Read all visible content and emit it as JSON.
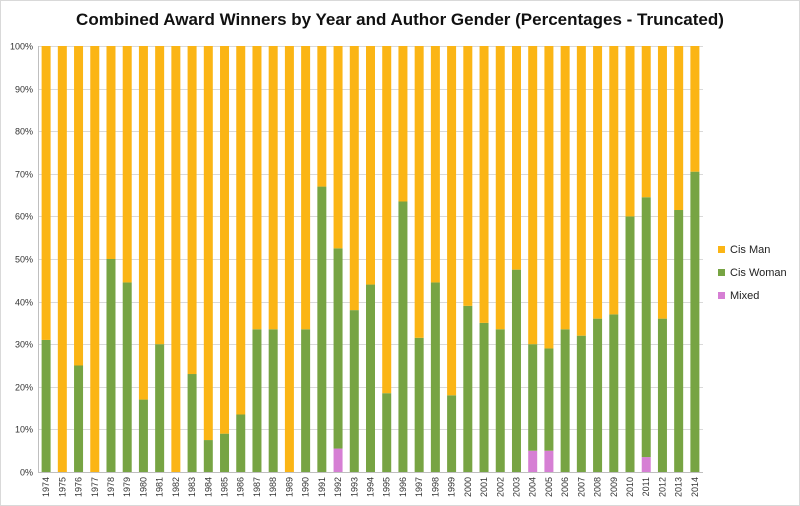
{
  "chart_data": {
    "type": "bar",
    "stacked": true,
    "title": "Combined Award Winners by Year and Author Gender (Percentages - Truncated)",
    "xlabel": "",
    "ylabel": "",
    "ylim": [
      0,
      100
    ],
    "yticks": [
      "0%",
      "10%",
      "20%",
      "30%",
      "40%",
      "50%",
      "60%",
      "70%",
      "80%",
      "90%",
      "100%"
    ],
    "grid": true,
    "legend_position": "right",
    "categories": [
      "1974",
      "1975",
      "1976",
      "1977",
      "1978",
      "1979",
      "1980",
      "1981",
      "1982",
      "1983",
      "1984",
      "1985",
      "1986",
      "1987",
      "1988",
      "1989",
      "1990",
      "1991",
      "1992",
      "1993",
      "1994",
      "1995",
      "1996",
      "1997",
      "1998",
      "1999",
      "2000",
      "2001",
      "2002",
      "2003",
      "2004",
      "2005",
      "2006",
      "2007",
      "2008",
      "2009",
      "2010",
      "2011",
      "2012",
      "2013",
      "2014"
    ],
    "series": [
      {
        "name": "Mixed",
        "color": "#d67fd4",
        "values": [
          0,
          0,
          0,
          0,
          0,
          0,
          0,
          0,
          0,
          0,
          0,
          0,
          0,
          0,
          0,
          0,
          0,
          0,
          5.5,
          0,
          0,
          0,
          0,
          0,
          0,
          0,
          0,
          0,
          0,
          0,
          5,
          5,
          0,
          0,
          0,
          0,
          0,
          3.5,
          0,
          0,
          0
        ]
      },
      {
        "name": "Cis Woman",
        "color": "#77a443",
        "values": [
          31,
          0,
          25,
          0,
          50,
          44.5,
          17,
          30,
          0,
          23,
          7.5,
          9,
          13.5,
          33.5,
          33.5,
          0,
          33.5,
          67,
          47,
          38,
          44,
          18.5,
          63.5,
          31.5,
          44.5,
          18,
          39,
          35,
          33.5,
          47.5,
          25,
          24,
          33.5,
          32,
          36,
          37,
          60,
          61,
          36,
          61.5,
          70.5
        ]
      },
      {
        "name": "Cis Man",
        "color": "#fbb515",
        "values": [
          69,
          100,
          75,
          100,
          50,
          55.5,
          83,
          70,
          100,
          77,
          92.5,
          91,
          86.5,
          66.5,
          66.5,
          100,
          66.5,
          33,
          47.5,
          62,
          56,
          81.5,
          36.5,
          68.5,
          55.5,
          82,
          61,
          65,
          66.5,
          52.5,
          70,
          71,
          66.5,
          68,
          64,
          63,
          40,
          35.5,
          64,
          38.5,
          29.5
        ]
      }
    ]
  },
  "legend": {
    "items": [
      {
        "label": "Cis Man",
        "color": "#fbb515"
      },
      {
        "label": "Cis Woman",
        "color": "#77a443"
      },
      {
        "label": "Mixed",
        "color": "#d67fd4"
      }
    ]
  }
}
